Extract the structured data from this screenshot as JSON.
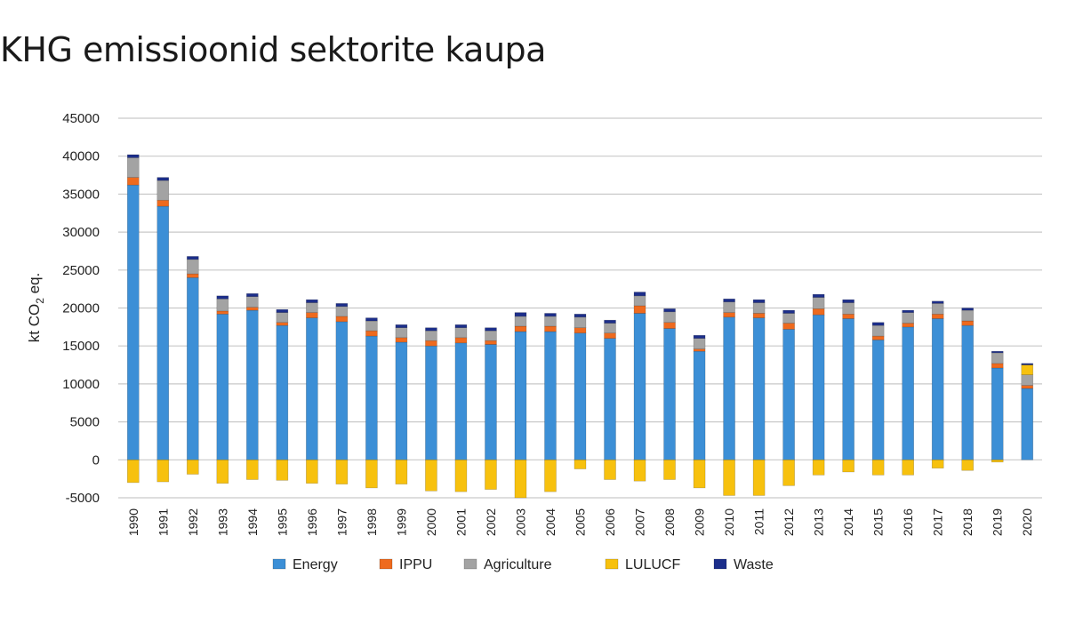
{
  "title": "KHG emissioonid sektorite kaupa",
  "chart_data": {
    "type": "bar",
    "stacked": true,
    "ylabel_main": "kt CO",
    "ylabel_sub": "2",
    "ylabel_tail": " eq.",
    "ylim": [
      -5000,
      45000
    ],
    "yticks": [
      45000,
      40000,
      35000,
      30000,
      25000,
      20000,
      15000,
      10000,
      5000,
      0,
      -5000
    ],
    "grid": true,
    "legend_position": "bottom",
    "categories": [
      "1990",
      "1991",
      "1992",
      "1993",
      "1994",
      "1995",
      "1996",
      "1997",
      "1998",
      "1999",
      "2000",
      "2001",
      "2002",
      "2003",
      "2004",
      "2005",
      "2006",
      "2007",
      "2008",
      "2009",
      "2010",
      "2011",
      "2012",
      "2013",
      "2014",
      "2015",
      "2016",
      "2017",
      "2018",
      "2019",
      "2020"
    ],
    "series": [
      {
        "name": "Energy",
        "color": "#3c8fd6",
        "values": [
          36200,
          33400,
          24000,
          19200,
          19700,
          17700,
          18700,
          18200,
          16300,
          15500,
          15000,
          15400,
          15200,
          16900,
          16900,
          16700,
          16000,
          19300,
          17300,
          14300,
          18800,
          18700,
          17200,
          19100,
          18600,
          15800,
          17500,
          18600,
          17700,
          12100,
          9400
        ]
      },
      {
        "name": "IPPU",
        "color": "#ee6a1e",
        "values": [
          1000,
          800,
          500,
          400,
          400,
          400,
          700,
          700,
          700,
          600,
          700,
          700,
          500,
          700,
          700,
          700,
          700,
          1000,
          800,
          300,
          600,
          600,
          800,
          800,
          600,
          500,
          500,
          600,
          600,
          600,
          400
        ]
      },
      {
        "name": "Agriculture",
        "color": "#a3a3a3",
        "values": [
          2600,
          2600,
          1900,
          1600,
          1400,
          1300,
          1300,
          1300,
          1300,
          1300,
          1300,
          1300,
          1300,
          1300,
          1300,
          1400,
          1300,
          1300,
          1400,
          1400,
          1400,
          1400,
          1300,
          1500,
          1500,
          1400,
          1400,
          1400,
          1400,
          1400,
          1400
        ]
      },
      {
        "name": "LULUCF",
        "color": "#f7c10e",
        "values": [
          -3000,
          -2900,
          -1900,
          -3100,
          -2600,
          -2700,
          -3100,
          -3200,
          -3700,
          -3200,
          -4100,
          -4200,
          -3900,
          -5000,
          -4200,
          -1200,
          -2600,
          -2800,
          -2600,
          -3700,
          -4700,
          -4700,
          -3400,
          -2000,
          -1600,
          -2000,
          -2000,
          -1100,
          -1400,
          -300,
          1300
        ]
      },
      {
        "name": "Waste",
        "color": "#1c2e8a",
        "values": [
          400,
          400,
          400,
          400,
          400,
          400,
          400,
          400,
          400,
          400,
          400,
          400,
          400,
          500,
          400,
          400,
          400,
          500,
          400,
          400,
          400,
          400,
          400,
          400,
          400,
          400,
          300,
          300,
          300,
          200,
          200
        ]
      }
    ]
  }
}
